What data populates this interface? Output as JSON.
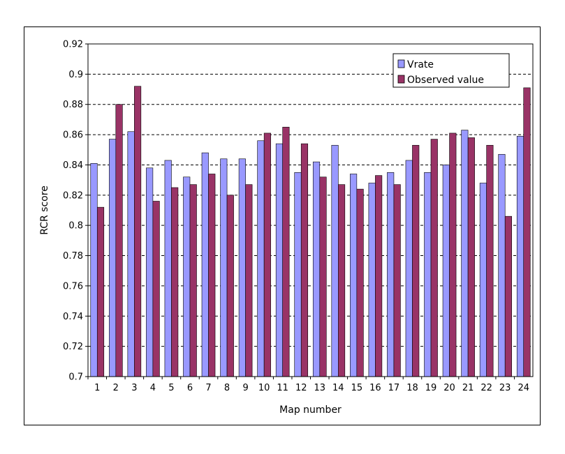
{
  "chart_data": {
    "type": "bar",
    "xlabel": "Map number",
    "ylabel": "RCR score",
    "ylim": [
      0.7,
      0.92
    ],
    "yticks": [
      0.7,
      0.72,
      0.74,
      0.76,
      0.78,
      0.8,
      0.82,
      0.84,
      0.86,
      0.88,
      0.9,
      0.92
    ],
    "ytick_labels": [
      "0.7",
      "0.72",
      "0.74",
      "0.76",
      "0.78",
      "0.8",
      "0.82",
      "0.84",
      "0.86",
      "0.88",
      "0.9",
      "0.92"
    ],
    "grid": "horizontal-dashed",
    "legend_position": "top-right",
    "categories": [
      "1",
      "2",
      "3",
      "4",
      "5",
      "6",
      "7",
      "8",
      "9",
      "10",
      "11",
      "12",
      "13",
      "14",
      "15",
      "16",
      "17",
      "18",
      "19",
      "20",
      "21",
      "22",
      "23",
      "24"
    ],
    "series": [
      {
        "name": "Vrate",
        "color": "#9999ff",
        "values": [
          0.841,
          0.857,
          0.862,
          0.838,
          0.843,
          0.832,
          0.848,
          0.844,
          0.844,
          0.856,
          0.854,
          0.835,
          0.842,
          0.853,
          0.834,
          0.828,
          0.835,
          0.843,
          0.835,
          0.84,
          0.863,
          0.828,
          0.847,
          0.859
        ]
      },
      {
        "name": "Observed value",
        "color": "#993366",
        "values": [
          0.812,
          0.88,
          0.892,
          0.816,
          0.825,
          0.827,
          0.834,
          0.82,
          0.827,
          0.861,
          0.865,
          0.854,
          0.832,
          0.827,
          0.824,
          0.833,
          0.827,
          0.853,
          0.857,
          0.861,
          0.858,
          0.853,
          0.806,
          0.891
        ]
      }
    ]
  }
}
